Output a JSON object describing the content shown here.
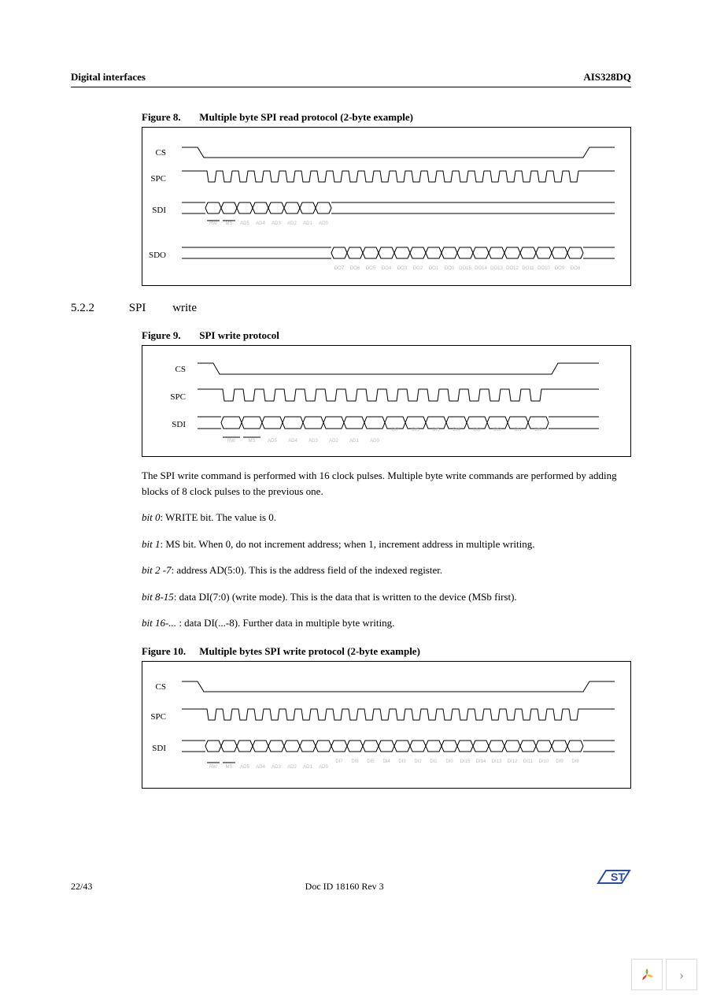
{
  "header": {
    "left": "Digital interfaces",
    "right": "AIS328DQ"
  },
  "section": {
    "num": "5.2.2",
    "title": "SPI",
    "subtitle": "write"
  },
  "fig8": {
    "num": "Figure 8.",
    "title": "Multiple byte SPI read protocol (2-byte example)",
    "signals": [
      "CS",
      "SPC",
      "SDI",
      "SDO"
    ],
    "sdi_addr": [
      "RW",
      "MS",
      "AD5",
      "AD4",
      "AD3",
      "AD2",
      "AD1",
      "AD0"
    ],
    "sdo_byte1": [
      "DO7",
      "DO6",
      "DO5",
      "DO4",
      "DO3",
      "DO2",
      "DO1",
      "DO0"
    ],
    "sdo_byte2": [
      "DO15",
      "DO14",
      "DO13",
      "DO12",
      "DO11",
      "DO10",
      "DO9",
      "DO8"
    ]
  },
  "fig9": {
    "num": "Figure 9.",
    "title": "SPI write protocol",
    "signals": [
      "CS",
      "SPC",
      "SDI"
    ],
    "addr": [
      "RW",
      "MS",
      "AD5",
      "AD4",
      "AD3",
      "AD2",
      "AD1",
      "AD0"
    ],
    "data": [
      "DI7",
      "DI6",
      "DI5",
      "DI4",
      "DI3",
      "DI2",
      "DI1",
      "DI0"
    ]
  },
  "para1": "The SPI write command is performed with 16 clock pulses. Multiple byte write commands are performed by adding blocks of 8 clock pulses to the previous one.",
  "bit0": {
    "label": "bit 0",
    "text": ": WRITE bit. The value is 0."
  },
  "bit1": {
    "label": "bit 1",
    "text": ": MS bit. When 0, do not increment address; when 1, increment address in multiple writing."
  },
  "bit27": {
    "label": "bit 2 -7",
    "text": ": address AD(5:0). This is the address field of the indexed register."
  },
  "bit815": {
    "label": "bit 8-15",
    "text": ": data DI(7:0) (write mode). This is the data that is written to the device (MSb first)."
  },
  "bit16": {
    "label": "bit 16-...",
    "text": " : data DI(...-8). Further data in multiple byte writing."
  },
  "fig10": {
    "num": "Figure 10.",
    "title": "Multiple bytes SPI write protocol (2-byte example)",
    "signals": [
      "CS",
      "SPC",
      "SDI"
    ],
    "addr": [
      "RW",
      "MS",
      "AD5",
      "AD4",
      "AD3",
      "AD2",
      "AD1",
      "AD0"
    ],
    "data1": [
      "DI7",
      "DI6",
      "DI5",
      "DI4",
      "DI3",
      "DI2",
      "DI1",
      "DI0"
    ],
    "data2": [
      "DI15",
      "DI14",
      "DI13",
      "DI12",
      "DI11",
      "DI10",
      "DI9",
      "DI8"
    ]
  },
  "footer": {
    "page": "22/43",
    "docid": "Doc ID 18160 Rev 3"
  },
  "colors": {
    "line": "#000000",
    "faint": "#bbbbbb",
    "bg": "#ffffff"
  }
}
